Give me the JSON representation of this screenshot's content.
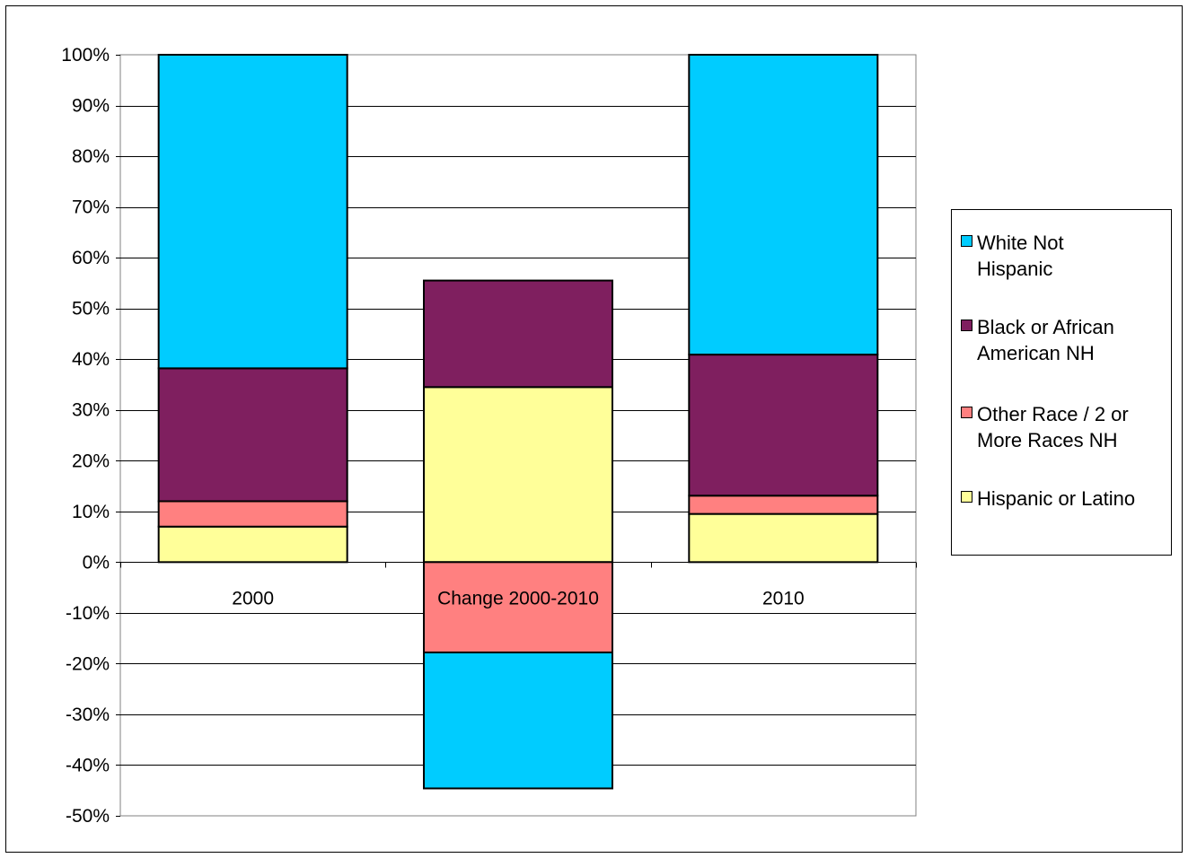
{
  "chart_data": {
    "type": "bar",
    "stacked": true,
    "categories": [
      "2000",
      "Change 2000-2010",
      "2010"
    ],
    "ylim": [
      -50,
      100
    ],
    "y_ticks": [
      "100%",
      "90%",
      "80%",
      "70%",
      "60%",
      "50%",
      "40%",
      "30%",
      "20%",
      "10%",
      "0%",
      "-10%",
      "-20%",
      "-30%",
      "-40%",
      "-50%"
    ],
    "y_tick_values": [
      100,
      90,
      80,
      70,
      60,
      50,
      40,
      30,
      20,
      10,
      0,
      -10,
      -20,
      -30,
      -40,
      -50
    ],
    "grid": true,
    "legend_position": "right",
    "series": [
      {
        "name": "Hispanic or Latino",
        "color": "#ffff99",
        "values": [
          7.0,
          34.5,
          9.5
        ]
      },
      {
        "name": "Other Race / 2 or More Races NH",
        "color": "#ff8080",
        "values": [
          5.0,
          -17.8,
          3.6
        ]
      },
      {
        "name": "Black or African American NH",
        "color": "#7f1f5f",
        "values": [
          26.2,
          21.0,
          27.8
        ]
      },
      {
        "name": "White Not Hispanic",
        "color": "#00ccff",
        "values": [
          61.8,
          -26.8,
          59.1
        ]
      }
    ],
    "legend": [
      {
        "label": "White Not\nHispanic",
        "color": "#00ccff"
      },
      {
        "label": "Black or African\nAmerican NH",
        "color": "#7f1f5f"
      },
      {
        "label": "Other Race / 2 or\nMore Races NH",
        "color": "#ff8080"
      },
      {
        "label": "Hispanic or Latino",
        "color": "#ffff99"
      }
    ]
  }
}
